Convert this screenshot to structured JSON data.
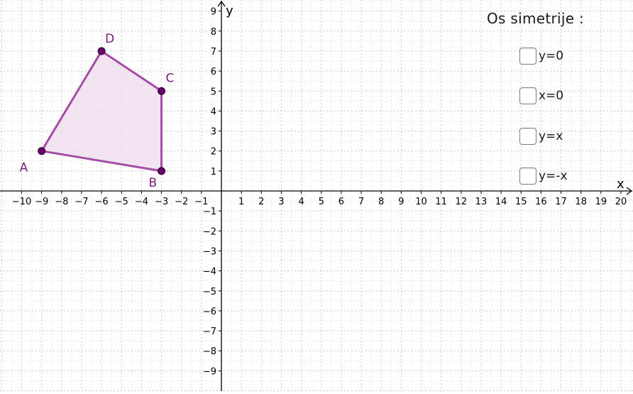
{
  "axes": {
    "x_label": "x",
    "y_label": "y",
    "x_range": [
      -11,
      20.5
    ],
    "y_range": [
      -9.8,
      9.4
    ],
    "x_ticks": [
      -10,
      -9,
      -8,
      -7,
      -6,
      -5,
      -4,
      -3,
      -2,
      -1,
      1,
      2,
      3,
      4,
      5,
      6,
      7,
      8,
      9,
      10,
      11,
      12,
      13,
      14,
      15,
      16,
      17,
      18,
      19,
      20
    ],
    "y_ticks": [
      -9,
      -8,
      -7,
      -6,
      -5,
      -4,
      -3,
      -2,
      -1,
      1,
      2,
      3,
      4,
      5,
      6,
      7,
      8,
      9
    ],
    "grid": true,
    "grid_style": "dotted"
  },
  "polygon": {
    "vertices": [
      {
        "label": "A",
        "x": -9,
        "y": 2
      },
      {
        "label": "B",
        "x": -3,
        "y": 1
      },
      {
        "label": "C",
        "x": -3,
        "y": 5
      },
      {
        "label": "D",
        "x": -6,
        "y": 7
      }
    ],
    "stroke_color": "#A64CA6",
    "fill_color": "#F0E0F0",
    "point_color": "#6B006B",
    "label_color": "#7A1F7A"
  },
  "panel": {
    "title": "Os simetrije :",
    "options": [
      {
        "label": "y=0",
        "checked": false
      },
      {
        "label": "x=0",
        "checked": false
      },
      {
        "label": "y=x",
        "checked": false
      },
      {
        "label": "y=-x",
        "checked": false
      }
    ]
  }
}
